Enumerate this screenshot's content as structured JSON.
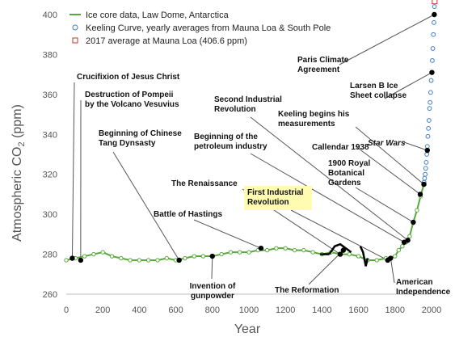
{
  "chart_data": {
    "type": "line",
    "xlabel": "Year",
    "ylabel_main": "Atmospheric CO",
    "ylabel_sub": "2",
    "ylabel_tail": " (ppm)",
    "xlim": [
      0,
      2000
    ],
    "ylim": [
      260,
      400
    ],
    "xticks": [
      "0",
      "200",
      "400",
      "600",
      "800",
      "1000",
      "1200",
      "1400",
      "1600",
      "1800",
      "2000"
    ],
    "yticks": [
      "260",
      "280",
      "300",
      "320",
      "340",
      "360",
      "380",
      "400"
    ],
    "grid": false,
    "legend_position": "top-left",
    "legend": [
      "Ice core data, Law Dome, Antarctica",
      "Keeling Curve, yearly averages from Mauna Loa & South Pole",
      "2017 average at Mauna Loa (406.6 ppm)"
    ],
    "colors": {
      "ice_core": "#5aa83c",
      "keeling": "#3f7fc7",
      "mauna_loa_2017": "#c8342a",
      "event_marker": "#000000",
      "highlight": "#fffbb0"
    },
    "series": [
      {
        "name": "Ice core data, Law Dome, Antarctica",
        "x": [
          0,
          50,
          100,
          150,
          200,
          250,
          300,
          350,
          400,
          450,
          500,
          550,
          600,
          650,
          700,
          750,
          800,
          850,
          900,
          950,
          1000,
          1050,
          1100,
          1150,
          1200,
          1250,
          1300,
          1350,
          1400,
          1450,
          1500,
          1550,
          1600,
          1650,
          1700,
          1750,
          1800,
          1820,
          1840,
          1860,
          1880,
          1900,
          1920,
          1940,
          1958
        ],
        "y": [
          277,
          278,
          279,
          280,
          281,
          279,
          278,
          277,
          277,
          277,
          277,
          278,
          277,
          278,
          279,
          279,
          279,
          280,
          281,
          281,
          281,
          282,
          282,
          283,
          283,
          282,
          282,
          281,
          280,
          281,
          280,
          280,
          279,
          277,
          277,
          278,
          279,
          282,
          284,
          286,
          289,
          296,
          302,
          309,
          315
        ]
      },
      {
        "name": "Keeling Curve, yearly averages from Mauna Loa & South Pole",
        "x": [
          1959,
          1962,
          1965,
          1968,
          1971,
          1974,
          1977,
          1980,
          1983,
          1986,
          1989,
          1992,
          1995,
          1998,
          2001,
          2004,
          2007,
          2010,
          2013,
          2016
        ],
        "y": [
          316,
          318,
          320,
          323,
          326,
          330,
          334,
          339,
          343,
          347,
          353,
          356,
          361,
          367,
          371,
          377,
          383,
          390,
          396,
          404
        ]
      },
      {
        "name": "2017 average at Mauna Loa (406.6 ppm)",
        "x": [
          2017
        ],
        "y": [
          406.6
        ]
      }
    ],
    "emphasis_segments": [
      {
        "x": [
          1390,
          1440
        ],
        "y": [
          280,
          280
        ]
      },
      {
        "x": [
          1440,
          1470,
          1500,
          1530,
          1560
        ],
        "y": [
          280,
          284,
          285,
          283,
          281
        ]
      },
      {
        "x": [
          1610,
          1625,
          1640,
          1650
        ],
        "y": [
          284,
          281,
          274,
          278
        ]
      }
    ],
    "events": [
      {
        "x": 33,
        "y": 278,
        "label": [
          "Crucifixion of Jesus Christ"
        ],
        "style": "bold"
      },
      {
        "x": 79,
        "y": 277,
        "label": [
          "Destruction of Pompeii",
          "by the Volcano Vesuvius"
        ],
        "style": "bold"
      },
      {
        "x": 618,
        "y": 277,
        "label": [
          "Beginning of Chinese",
          "Tang Dynsasty"
        ],
        "style": "bold"
      },
      {
        "x": 800,
        "y": 279,
        "label": [
          "Invention of",
          "gunpowder"
        ],
        "style": "bold"
      },
      {
        "x": 1066,
        "y": 283,
        "label": [
          "Battle of Hastings"
        ],
        "style": "bold"
      },
      {
        "x": 1500,
        "y": 280,
        "label": [
          "The Renaissance"
        ],
        "style": "bold"
      },
      {
        "x": 1517,
        "y": 282,
        "label": [
          "The Reformation"
        ],
        "style": "bold"
      },
      {
        "x": 1760,
        "y": 277,
        "label": [
          "First Industrial",
          "Revolution"
        ],
        "style": "highlight"
      },
      {
        "x": 1776,
        "y": 278,
        "label": [
          "American",
          "Independence"
        ],
        "style": "bold"
      },
      {
        "x": 1850,
        "y": 286,
        "label": [
          "Beginning of the",
          "petroleum industry"
        ],
        "style": "bold"
      },
      {
        "x": 1870,
        "y": 287,
        "label": [
          "Second Industrial",
          "Revolution"
        ],
        "style": "bold"
      },
      {
        "x": 1900,
        "y": 296,
        "label": [
          "1900 Royal",
          "Botanical",
          "Gardens"
        ],
        "style": "bold"
      },
      {
        "x": 1938,
        "y": 310,
        "label": [
          "Callendar 1938"
        ],
        "style": "bold"
      },
      {
        "x": 1958,
        "y": 315,
        "label": [
          "Keeling begins his",
          "measurements"
        ],
        "style": "bold"
      },
      {
        "x": 1977,
        "y": 332,
        "label": [
          "Star Wars"
        ],
        "style": "italic"
      },
      {
        "x": 2002,
        "y": 371,
        "label": [
          "Larsen B Ice",
          "Sheet collapse"
        ],
        "style": "bold"
      },
      {
        "x": 2015,
        "y": 400,
        "label": [
          "Paris Climate",
          "Agreement"
        ],
        "style": "bold"
      }
    ]
  }
}
